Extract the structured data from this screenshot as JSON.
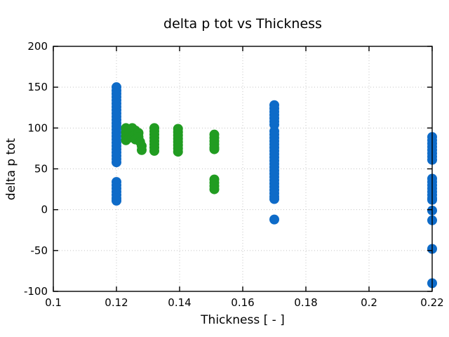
{
  "figure": {
    "background": "#ffffff",
    "text_color": "#000000",
    "grid_color": "#c4c4c4"
  },
  "chart_data": {
    "type": "scatter",
    "title": "delta p tot vs Thickness",
    "xlabel": "Thickness [ - ]",
    "ylabel": "delta p tot",
    "xlim": [
      0.1,
      0.22
    ],
    "ylim": [
      -100,
      200
    ],
    "xticks": [
      0.1,
      0.12,
      0.14,
      0.16,
      0.18,
      0.2,
      0.22
    ],
    "xtick_labels": [
      "0.1",
      "0.12",
      "0.14",
      "0.16",
      "0.18",
      "0.2",
      "0.22"
    ],
    "yticks": [
      -100,
      -50,
      0,
      50,
      100,
      150,
      200
    ],
    "ytick_labels": [
      "-100",
      "-50",
      "0",
      "50",
      "100",
      "150",
      "200"
    ],
    "grid": true,
    "grid_style": "dotted",
    "legend": false,
    "marker": "circle",
    "marker_radius_px": 7,
    "series": [
      {
        "name": "blue-series",
        "color": "#0e6bc8",
        "points": [
          [
            0.12,
            150
          ],
          [
            0.12,
            146
          ],
          [
            0.12,
            142
          ],
          [
            0.12,
            138
          ],
          [
            0.12,
            134
          ],
          [
            0.12,
            130
          ],
          [
            0.12,
            126
          ],
          [
            0.12,
            122
          ],
          [
            0.12,
            118
          ],
          [
            0.12,
            114
          ],
          [
            0.12,
            110
          ],
          [
            0.12,
            106
          ],
          [
            0.12,
            102
          ],
          [
            0.12,
            98
          ],
          [
            0.12,
            94
          ],
          [
            0.12,
            90
          ],
          [
            0.12,
            86
          ],
          [
            0.12,
            82
          ],
          [
            0.12,
            78
          ],
          [
            0.12,
            74
          ],
          [
            0.12,
            70
          ],
          [
            0.12,
            66
          ],
          [
            0.12,
            62
          ],
          [
            0.12,
            58
          ],
          [
            0.12,
            34
          ],
          [
            0.12,
            30
          ],
          [
            0.12,
            26
          ],
          [
            0.12,
            22
          ],
          [
            0.12,
            18
          ],
          [
            0.12,
            14
          ],
          [
            0.12,
            11
          ],
          [
            0.17,
            128
          ],
          [
            0.17,
            124
          ],
          [
            0.17,
            120
          ],
          [
            0.17,
            116
          ],
          [
            0.17,
            112
          ],
          [
            0.17,
            108
          ],
          [
            0.17,
            104
          ],
          [
            0.17,
            96
          ],
          [
            0.17,
            92
          ],
          [
            0.17,
            88
          ],
          [
            0.17,
            84
          ],
          [
            0.17,
            80
          ],
          [
            0.17,
            76
          ],
          [
            0.17,
            72
          ],
          [
            0.17,
            68
          ],
          [
            0.17,
            64
          ],
          [
            0.17,
            60
          ],
          [
            0.17,
            56
          ],
          [
            0.17,
            52
          ],
          [
            0.17,
            48
          ],
          [
            0.17,
            44
          ],
          [
            0.17,
            40
          ],
          [
            0.17,
            36
          ],
          [
            0.17,
            32
          ],
          [
            0.17,
            28
          ],
          [
            0.17,
            24
          ],
          [
            0.17,
            20
          ],
          [
            0.17,
            16
          ],
          [
            0.17,
            13
          ],
          [
            0.17,
            -12
          ],
          [
            0.22,
            89
          ],
          [
            0.22,
            85
          ],
          [
            0.22,
            81
          ],
          [
            0.22,
            77
          ],
          [
            0.22,
            73
          ],
          [
            0.22,
            69
          ],
          [
            0.22,
            65
          ],
          [
            0.22,
            61
          ],
          [
            0.22,
            38
          ],
          [
            0.22,
            34
          ],
          [
            0.22,
            30
          ],
          [
            0.22,
            26
          ],
          [
            0.22,
            22
          ],
          [
            0.22,
            18
          ],
          [
            0.22,
            14
          ],
          [
            0.22,
            12
          ],
          [
            0.22,
            -1
          ],
          [
            0.22,
            -13
          ],
          [
            0.22,
            -48
          ],
          [
            0.22,
            -90
          ]
        ]
      },
      {
        "name": "green-series",
        "color": "#219c21",
        "points": [
          [
            0.123,
            100
          ],
          [
            0.123,
            95
          ],
          [
            0.123,
            90
          ],
          [
            0.123,
            85
          ],
          [
            0.124,
            98
          ],
          [
            0.124,
            93
          ],
          [
            0.124,
            88
          ],
          [
            0.125,
            100
          ],
          [
            0.125,
            95
          ],
          [
            0.125,
            89
          ],
          [
            0.126,
            97
          ],
          [
            0.126,
            92
          ],
          [
            0.126,
            86
          ],
          [
            0.127,
            94
          ],
          [
            0.127,
            89
          ],
          [
            0.1275,
            83
          ],
          [
            0.128,
            78
          ],
          [
            0.128,
            73
          ],
          [
            0.132,
            100
          ],
          [
            0.132,
            96
          ],
          [
            0.132,
            92
          ],
          [
            0.132,
            88
          ],
          [
            0.132,
            84
          ],
          [
            0.132,
            80
          ],
          [
            0.132,
            76
          ],
          [
            0.132,
            72
          ],
          [
            0.1395,
            99
          ],
          [
            0.1395,
            95
          ],
          [
            0.1395,
            91
          ],
          [
            0.1395,
            87
          ],
          [
            0.1395,
            83
          ],
          [
            0.1395,
            79
          ],
          [
            0.1395,
            75
          ],
          [
            0.1395,
            71
          ],
          [
            0.151,
            92
          ],
          [
            0.151,
            88
          ],
          [
            0.151,
            84
          ],
          [
            0.151,
            80
          ],
          [
            0.151,
            76
          ],
          [
            0.151,
            74
          ],
          [
            0.151,
            37
          ],
          [
            0.151,
            33
          ],
          [
            0.151,
            29
          ],
          [
            0.151,
            25
          ]
        ]
      }
    ]
  }
}
